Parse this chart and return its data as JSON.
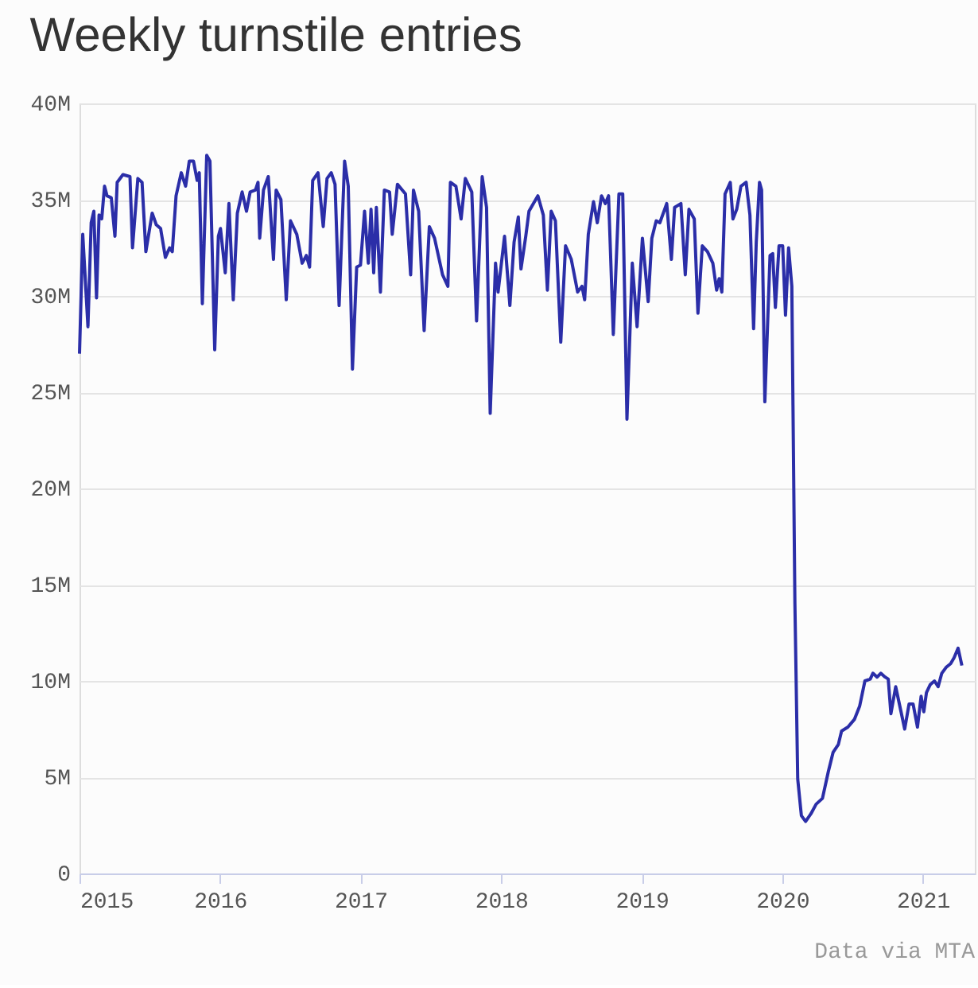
{
  "chart_data": {
    "type": "line",
    "title": "Weekly turnstile entries",
    "annotations": [
      "Data via MTA"
    ],
    "x": [
      2015.0,
      2015.023,
      2015.06,
      2015.083,
      2015.102,
      2015.121,
      2015.139,
      2015.158,
      2015.178,
      2015.196,
      2015.226,
      2015.252,
      2015.268,
      2015.309,
      2015.359,
      2015.377,
      2015.415,
      2015.445,
      2015.472,
      2015.517,
      2015.546,
      2015.577,
      2015.611,
      2015.641,
      2015.66,
      2015.687,
      2015.724,
      2015.755,
      2015.781,
      2015.811,
      2015.837,
      2015.852,
      2015.874,
      2015.905,
      2015.928,
      2015.962,
      2015.988,
      2016.003,
      2016.037,
      2016.063,
      2016.094,
      2016.123,
      2016.157,
      2016.188,
      2016.214,
      2016.252,
      2016.27,
      2016.282,
      2016.309,
      2016.343,
      2016.38,
      2016.399,
      2016.433,
      2016.471,
      2016.501,
      2016.546,
      2016.584,
      2016.614,
      2016.637,
      2016.659,
      2016.697,
      2016.734,
      2016.761,
      2016.791,
      2016.818,
      2016.847,
      2016.886,
      2016.912,
      2016.942,
      2016.972,
      2016.999,
      2017.028,
      2017.055,
      2017.074,
      2017.093,
      2017.112,
      2017.141,
      2017.169,
      2017.206,
      2017.225,
      2017.262,
      2017.319,
      2017.356,
      2017.376,
      2017.413,
      2017.452,
      2017.489,
      2017.526,
      2017.583,
      2017.621,
      2017.639,
      2017.678,
      2017.715,
      2017.745,
      2017.791,
      2017.825,
      2017.865,
      2017.896,
      2017.922,
      2017.96,
      2017.978,
      2018.024,
      2018.062,
      2018.092,
      2018.122,
      2018.141,
      2018.175,
      2018.198,
      2018.261,
      2018.3,
      2018.329,
      2018.356,
      2018.386,
      2018.424,
      2018.458,
      2018.499,
      2018.544,
      2018.575,
      2018.594,
      2018.62,
      2018.657,
      2018.684,
      2018.714,
      2018.741,
      2018.764,
      2018.798,
      2018.838,
      2018.865,
      2018.895,
      2018.933,
      2018.967,
      2019.005,
      2019.046,
      2019.072,
      2019.103,
      2019.129,
      2019.178,
      2019.211,
      2019.234,
      2019.279,
      2019.31,
      2019.336,
      2019.374,
      2019.4,
      2019.431,
      2019.468,
      2019.506,
      2019.533,
      2019.551,
      2019.57,
      2019.593,
      2019.63,
      2019.649,
      2019.676,
      2019.706,
      2019.743,
      2019.77,
      2019.796,
      2019.815,
      2019.838,
      2019.853,
      2019.876,
      2019.913,
      2019.932,
      2019.951,
      2019.977,
      2020.003,
      2020.023,
      2020.045,
      2020.068,
      2020.09,
      2020.11,
      2020.136,
      2020.166,
      2020.204,
      2020.241,
      2020.286,
      2020.328,
      2020.362,
      2020.399,
      2020.422,
      2020.467,
      2020.513,
      2020.551,
      2020.588,
      2020.626,
      2020.645,
      2020.675,
      2020.701,
      2020.732,
      2020.754,
      2020.773,
      2020.807,
      2020.845,
      2020.871,
      2020.902,
      2020.931,
      2020.962,
      2020.988,
      2021.007,
      2021.026,
      2021.052,
      2021.083,
      2021.109,
      2021.135,
      2021.165,
      2021.198,
      2021.222,
      2021.251,
      2021.278
    ],
    "series": [
      {
        "color": "#2b2ea8",
        "values": [
          27.0,
          33.2,
          28.4,
          33.8,
          34.4,
          29.9,
          34.2,
          34.0,
          35.7,
          35.2,
          35.1,
          33.1,
          35.9,
          36.3,
          36.2,
          32.5,
          36.1,
          35.9,
          32.3,
          34.3,
          33.7,
          33.5,
          32.0,
          32.5,
          32.3,
          35.2,
          36.4,
          35.7,
          37.0,
          37.0,
          36.0,
          36.4,
          29.6,
          37.3,
          37.0,
          27.2,
          33.1,
          33.5,
          31.2,
          34.8,
          29.8,
          34.3,
          35.4,
          34.4,
          35.4,
          35.5,
          35.9,
          33.0,
          35.5,
          36.2,
          31.9,
          35.5,
          35.0,
          29.8,
          33.9,
          33.2,
          31.7,
          32.1,
          31.5,
          36.0,
          36.4,
          33.6,
          36.1,
          36.4,
          35.8,
          29.5,
          37.0,
          35.7,
          26.2,
          31.5,
          31.6,
          34.4,
          31.7,
          34.5,
          31.2,
          34.6,
          30.2,
          35.5,
          35.4,
          33.2,
          35.8,
          35.3,
          31.1,
          35.5,
          34.4,
          28.2,
          33.6,
          33.0,
          31.1,
          30.5,
          35.9,
          35.7,
          34.0,
          36.1,
          35.4,
          28.7,
          36.2,
          34.6,
          23.9,
          31.7,
          30.2,
          33.1,
          29.5,
          32.8,
          34.1,
          31.4,
          33.1,
          34.4,
          35.2,
          34.2,
          30.3,
          34.4,
          33.9,
          27.6,
          32.6,
          31.9,
          30.2,
          30.5,
          29.8,
          33.2,
          34.9,
          33.8,
          35.2,
          34.8,
          35.2,
          28.0,
          35.3,
          35.3,
          23.6,
          31.7,
          28.4,
          33.0,
          29.7,
          33.0,
          33.9,
          33.8,
          34.8,
          31.9,
          34.6,
          34.8,
          31.1,
          34.5,
          34.0,
          29.1,
          32.6,
          32.3,
          31.7,
          30.3,
          30.9,
          30.2,
          35.3,
          35.9,
          34.0,
          34.5,
          35.7,
          35.9,
          34.2,
          28.3,
          32.8,
          35.9,
          35.5,
          24.5,
          32.1,
          32.2,
          29.4,
          32.6,
          32.6,
          29.0,
          32.5,
          30.5,
          14.0,
          4.9,
          3.0,
          2.7,
          3.1,
          3.6,
          3.9,
          5.3,
          6.3,
          6.7,
          7.4,
          7.6,
          8.0,
          8.7,
          10.0,
          10.1,
          10.4,
          10.2,
          10.4,
          10.2,
          10.1,
          8.3,
          9.7,
          8.4,
          7.5,
          8.8,
          8.8,
          7.6,
          9.2,
          8.4,
          9.4,
          9.8,
          10.0,
          9.7,
          10.4,
          10.7,
          10.9,
          11.2,
          11.7,
          10.8
        ]
      }
    ],
    "xlim": [
      2015,
      2021.37
    ],
    "xticks": [
      2015,
      2016,
      2017,
      2018,
      2019,
      2020,
      2021
    ],
    "ylim": [
      0,
      40
    ],
    "yticks": [
      {
        "value": 0,
        "label": "0"
      },
      {
        "value": 5,
        "label": "5M"
      },
      {
        "value": 10,
        "label": "10M"
      },
      {
        "value": 15,
        "label": "15M"
      },
      {
        "value": 20,
        "label": "20M"
      },
      {
        "value": 25,
        "label": "25M"
      },
      {
        "value": 30,
        "label": "30M"
      },
      {
        "value": 35,
        "label": "35M"
      },
      {
        "value": 40,
        "label": "40M"
      }
    ],
    "grid": "y",
    "marker": "none",
    "line_style": "solid"
  }
}
